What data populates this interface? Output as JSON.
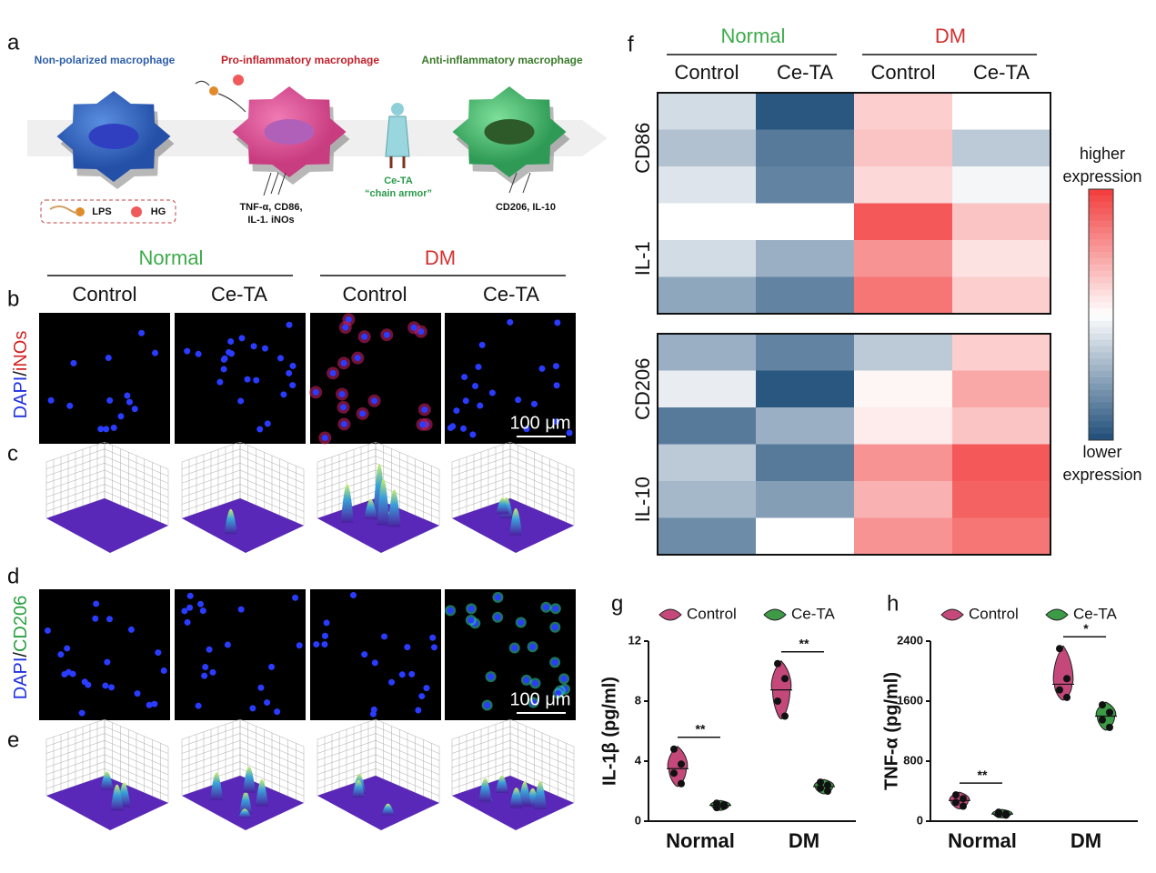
{
  "panel_labels": [
    "a",
    "b",
    "c",
    "d",
    "e",
    "f",
    "g",
    "h"
  ],
  "diagram": {
    "stage_labels": [
      "Non-polarized macrophage",
      "Pro-inflammatory macrophage",
      "Anti-inflammatory macrophage"
    ],
    "stimuli": [
      "LPS",
      "HG"
    ],
    "pro_markers": [
      "TNF-α, CD86,",
      "IL-1. iNOs"
    ],
    "agent": [
      "Ce-TA",
      "“chain armor”"
    ],
    "anti_markers": "CD206, IL-10"
  },
  "micrographs": {
    "group_labels": [
      "Normal",
      "DM"
    ],
    "column_labels": [
      "Control",
      "Ce-TA",
      "Control",
      "Ce-TA"
    ],
    "stain_b": [
      "DAPI",
      "/",
      "iNOs"
    ],
    "stain_d": [
      "DAPI",
      "/",
      "CD206"
    ],
    "scale_bar": "100 μm"
  },
  "chart_data": [
    {
      "type": "heatmap",
      "group_labels": [
        "Normal",
        "DM"
      ],
      "columns": [
        "Control",
        "Ce-TA",
        "Control",
        "Ce-TA"
      ],
      "row_labels": [
        "CD86",
        "IL-1",
        "CD206",
        "IL-10"
      ],
      "vlim": [
        -1,
        1
      ],
      "colors": {
        "low": "#1f4e79",
        "mid": "#ffffff",
        "high": "#f23b3b"
      },
      "legend": {
        "high": [
          "higher",
          "expression"
        ],
        "low": [
          "lower",
          "expression"
        ]
      },
      "values": [
        [
          -0.2,
          -0.95,
          0.25,
          0.0
        ],
        [
          -0.35,
          -0.75,
          0.3,
          -0.3
        ],
        [
          -0.15,
          -0.7,
          0.2,
          -0.05
        ],
        [
          0.0,
          0.0,
          0.85,
          0.3
        ],
        [
          -0.2,
          -0.45,
          0.55,
          0.15
        ],
        [
          -0.5,
          -0.7,
          0.7,
          0.25
        ],
        [
          -0.45,
          -0.7,
          -0.3,
          0.25
        ],
        [
          -0.1,
          -0.95,
          0.05,
          0.45
        ],
        [
          -0.75,
          -0.45,
          0.1,
          0.3
        ],
        [
          -0.3,
          -0.75,
          0.55,
          0.85
        ],
        [
          -0.4,
          -0.55,
          0.4,
          0.8
        ],
        [
          -0.65,
          0.0,
          0.55,
          0.7
        ]
      ]
    },
    {
      "type": "violin",
      "ylabel": "IL-1β (pg/ml)",
      "categories": [
        "Normal",
        "DM"
      ],
      "ylim": [
        0,
        12
      ],
      "yticks": [
        0,
        4,
        8,
        12
      ],
      "series": [
        {
          "name": "Control",
          "color": "#c4497a",
          "values": [
            [
              4.8,
              3.8,
              3.2,
              2.5
            ],
            [
              10.5,
              9.5,
              8.0,
              7.0
            ]
          ]
        },
        {
          "name": "Ce-TA",
          "color": "#3d9a47",
          "values": [
            [
              1.2,
              1.0,
              0.9,
              1.1
            ],
            [
              2.6,
              2.4,
              2.2,
              2.0
            ]
          ]
        }
      ],
      "annotations": [
        "**",
        "**"
      ]
    },
    {
      "type": "violin",
      "ylabel": "TNF-α (pg/ml)",
      "categories": [
        "Normal",
        "DM"
      ],
      "ylim": [
        0,
        2400
      ],
      "yticks": [
        0,
        800,
        1600,
        2400
      ],
      "series": [
        {
          "name": "Control",
          "color": "#c4497a",
          "values": [
            [
              350,
              300,
              250,
              200
            ],
            [
              2300,
              1900,
              1750,
              1650
            ]
          ]
        },
        {
          "name": "Ce-TA",
          "color": "#3d9a47",
          "values": [
            [
              120,
              100,
              90,
              80
            ],
            [
              1550,
              1450,
              1350,
              1250
            ]
          ]
        }
      ],
      "annotations": [
        "**",
        "*"
      ]
    }
  ]
}
